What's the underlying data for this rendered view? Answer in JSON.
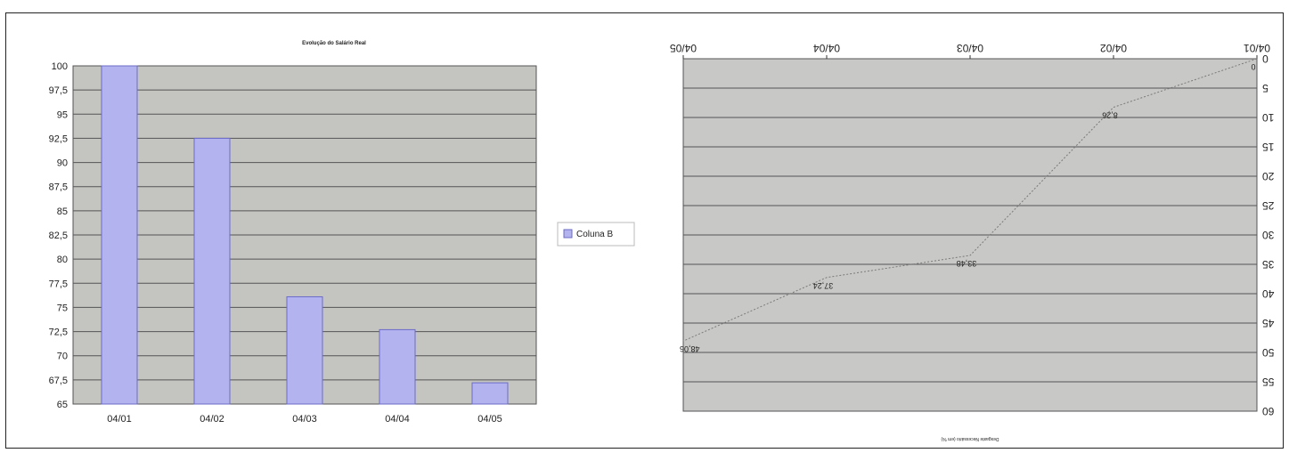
{
  "chart_data": [
    {
      "type": "bar",
      "title": "Evolução do Salário Real",
      "categories": [
        "04/01",
        "04/02",
        "04/03",
        "04/04",
        "04/05"
      ],
      "series": [
        {
          "name": "Coluna B",
          "values": [
            100,
            92.5,
            76.1,
            72.7,
            67.2
          ]
        }
      ],
      "ylim": [
        65,
        100
      ],
      "yticks": [
        "100",
        "97,5",
        "95",
        "92,5",
        "90",
        "87,5",
        "85",
        "82,5",
        "80",
        "77,5",
        "75",
        "72,5",
        "70",
        "67,5",
        "65"
      ],
      "grid": true,
      "legend": "right",
      "colors": {
        "bar": "#b3b3f0",
        "bar_border": "#6b6bc9",
        "plot_bg": "#c4c4c0",
        "grid": "#555555"
      }
    },
    {
      "type": "line",
      "orientation": "rotated 180 degrees",
      "xlabel": "Desgaste Necessário (em %)",
      "categories": [
        "04/01",
        "04/02",
        "04/03",
        "04/04",
        "04/05"
      ],
      "values": [
        0,
        8.26,
        33.48,
        37.24,
        48.06
      ],
      "data_labels": [
        "0",
        "8,26",
        "33,48",
        "37,24",
        "48,06"
      ],
      "ylim": [
        0,
        60
      ],
      "yticks": [
        "0",
        "5",
        "10",
        "15",
        "20",
        "25",
        "30",
        "35",
        "40",
        "45",
        "50",
        "55",
        "60"
      ],
      "grid": true,
      "colors": {
        "line": "#7a7a7a",
        "plot_bg": "#c8c8c6",
        "grid": "#555555"
      }
    }
  ]
}
